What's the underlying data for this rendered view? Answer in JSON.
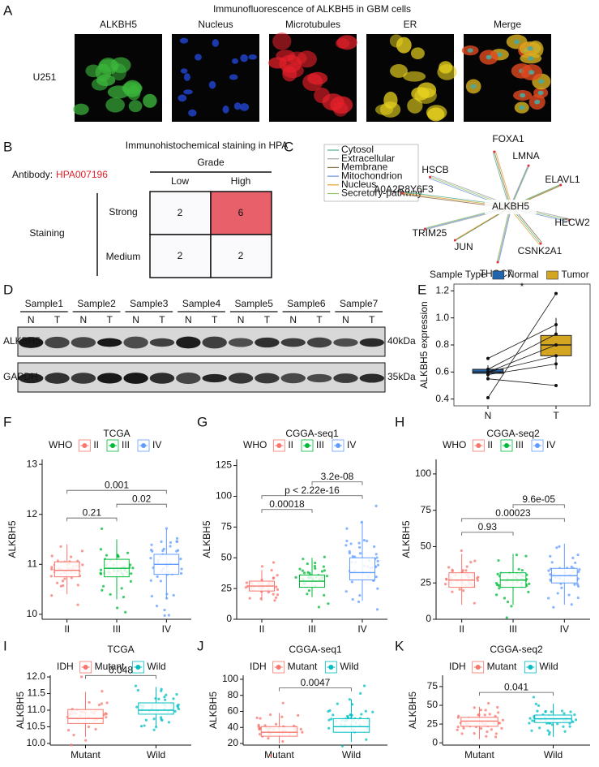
{
  "A": {
    "letter": "A",
    "title": "Immunofluorescence of ALKBH5 in GBM cells",
    "row_label": "U251",
    "channels": [
      {
        "name": "ALKBH5",
        "color": "#3cb83c"
      },
      {
        "name": "Nucleus",
        "color": "#1f3fbf"
      },
      {
        "name": "Microtubules",
        "color": "#e8202a"
      },
      {
        "name": "ER",
        "color": "#e8d21e"
      },
      {
        "name": "Merge",
        "color": "#000000"
      }
    ]
  },
  "B": {
    "letter": "B",
    "title": "Immunohistochemical staining in HPA",
    "antibody_label": "Antibody:",
    "antibody": "HPA007196",
    "column_header": "Grade",
    "columns": [
      "Low",
      "High"
    ],
    "row_header": "Staining",
    "rows": [
      "Strong",
      "Medium"
    ],
    "cells": [
      [
        2,
        6
      ],
      [
        2,
        2
      ]
    ]
  },
  "C": {
    "letter": "C",
    "center": "ALKBH5",
    "legend": [
      {
        "name": "Cytosol",
        "color": "#4daf8a"
      },
      {
        "name": "Extracellular",
        "color": "#a0a0a0"
      },
      {
        "name": "Membrane",
        "color": "#8c6d46"
      },
      {
        "name": "Mitochondrion",
        "color": "#6b8fd6"
      },
      {
        "name": "Nucleus",
        "color": "#e0a030"
      },
      {
        "name": "Secretory-pathway",
        "color": "#8fc46b"
      }
    ],
    "nodes": [
      "FOXA1",
      "LMNA",
      "ELAVL1",
      "HECW2",
      "CSNK2A1",
      "THOC7",
      "JUN",
      "TRIM25",
      "A0A2R8Y6F3",
      "HSCB"
    ]
  },
  "D": {
    "letter": "D",
    "samples": [
      "Sample1",
      "Sample2",
      "Sample3",
      "Sample4",
      "Sample5",
      "Sample6",
      "Sample7"
    ],
    "lanes": [
      "N",
      "T"
    ],
    "proteins": [
      "ALKBH5",
      "GAPDH"
    ],
    "sizes": [
      "40kDa",
      "35kDa"
    ]
  },
  "chart_data": [
    {
      "type": "paired-box",
      "panel": "E",
      "legend_title": "Sample Type",
      "ylabel": "ALKBH5 expression",
      "annotation": "*",
      "categories": [
        "N",
        "T"
      ],
      "ylim": [
        0.35,
        1.25
      ],
      "yticks": [
        0.4,
        0.6,
        0.8,
        {
          "value": 1,
          "label": "1.0"
        },
        1.2
      ],
      "series": [
        {
          "name": "Normal",
          "color": "#2166ac",
          "values": [
            0.55,
            0.59,
            0.6,
            0.62,
            0.65
          ]
        },
        {
          "name": "Tumor",
          "color": "#d4a520",
          "values": [
            0.62,
            0.72,
            0.8,
            0.87,
            1.0
          ]
        }
      ],
      "paired_values": [
        [
          0.41,
          1.18
        ],
        [
          0.7,
          0.95
        ],
        [
          0.62,
          0.88
        ],
        [
          0.6,
          0.8
        ],
        [
          0.6,
          0.72
        ],
        [
          0.58,
          0.66
        ],
        [
          0.55,
          0.5
        ]
      ]
    },
    {
      "type": "box",
      "panel": "F",
      "title": "TCGA",
      "legend_title": "WHO",
      "ylabel": "ALKBH5",
      "categories": [
        "II",
        "III",
        "IV"
      ],
      "ylim": [
        9.9,
        13.1
      ],
      "yticks": [
        10,
        11,
        12,
        13
      ],
      "series": [
        {
          "name": "II",
          "color": "#F8766D",
          "values": [
            10.4,
            10.75,
            10.88,
            11.05,
            11.4
          ]
        },
        {
          "name": "III",
          "color": "#00BA38",
          "values": [
            10.3,
            10.75,
            10.92,
            11.1,
            11.5
          ]
        },
        {
          "name": "IV",
          "color": "#619CFF",
          "values": [
            10.3,
            10.8,
            11.0,
            11.2,
            11.7
          ]
        }
      ],
      "comparisons": [
        {
          "groups": [
            "II",
            "III"
          ],
          "label": "0.21"
        },
        {
          "groups": [
            "III",
            "IV"
          ],
          "label": "0.02"
        },
        {
          "groups": [
            "II",
            "IV"
          ],
          "label": "0.001"
        }
      ]
    },
    {
      "type": "box",
      "panel": "G",
      "title": "CGGA-seq1",
      "legend_title": "WHO",
      "ylabel": "ALKBH5",
      "categories": [
        "II",
        "III",
        "IV"
      ],
      "ylim": [
        0,
        130
      ],
      "yticks": [
        0,
        25,
        50,
        75,
        100,
        125
      ],
      "series": [
        {
          "name": "II",
          "color": "#F8766D",
          "values": [
            15,
            23,
            27,
            31,
            40
          ]
        },
        {
          "name": "III",
          "color": "#00BA38",
          "values": [
            18,
            26,
            31,
            36,
            50
          ]
        },
        {
          "name": "IV",
          "color": "#619CFF",
          "values": [
            15,
            32,
            38,
            50,
            80
          ]
        }
      ],
      "comparisons": [
        {
          "groups": [
            "II",
            "III"
          ],
          "label": "0.00018"
        },
        {
          "groups": [
            "II",
            "IV"
          ],
          "label": "p < 2.22e-16"
        },
        {
          "groups": [
            "III",
            "IV"
          ],
          "label": "3.2e-08"
        }
      ]
    },
    {
      "type": "box",
      "panel": "H",
      "title": "CGGA-seq2",
      "legend_title": "WHO",
      "ylabel": "ALKBH5",
      "categories": [
        "II",
        "III",
        "IV"
      ],
      "ylim": [
        0,
        110
      ],
      "yticks": [
        0,
        25,
        50,
        75,
        100
      ],
      "series": [
        {
          "name": "II",
          "color": "#F8766D",
          "values": [
            10,
            22,
            27,
            32,
            45
          ]
        },
        {
          "name": "III",
          "color": "#00BA38",
          "values": [
            10,
            22,
            27,
            32,
            45
          ]
        },
        {
          "name": "IV",
          "color": "#619CFF",
          "values": [
            10,
            25,
            30,
            35,
            52
          ]
        }
      ],
      "comparisons": [
        {
          "groups": [
            "II",
            "III"
          ],
          "label": "0.93"
        },
        {
          "groups": [
            "II",
            "IV"
          ],
          "label": "0.00023"
        },
        {
          "groups": [
            "III",
            "IV"
          ],
          "label": "9.6e-05"
        }
      ]
    },
    {
      "type": "box",
      "panel": "I",
      "title": "TCGA",
      "legend_title": "IDH",
      "ylabel": "ALKBH5",
      "categories": [
        "Mutant",
        "Wild"
      ],
      "ylim": [
        9.95,
        12.05
      ],
      "yticks": [
        {
          "value": 10,
          "label": "10.0"
        },
        10.5,
        {
          "value": 11,
          "label": "11.0"
        },
        11.5,
        {
          "value": 12,
          "label": "12.0"
        }
      ],
      "series": [
        {
          "name": "Mutant",
          "color": "#F8766D",
          "values": [
            10.2,
            10.6,
            10.75,
            11.02,
            11.55
          ]
        },
        {
          "name": "Wild",
          "color": "#00BFC4",
          "values": [
            10.5,
            10.88,
            11.0,
            11.22,
            11.7
          ]
        }
      ],
      "comparisons": [
        {
          "groups": [
            "Mutant",
            "Wild"
          ],
          "label": "0.048"
        }
      ]
    },
    {
      "type": "box",
      "panel": "J",
      "title": "CGGA-seq1",
      "legend_title": "IDH",
      "ylabel": "ALKBH5",
      "categories": [
        "Mutant",
        "Wild"
      ],
      "ylim": [
        18,
        105
      ],
      "yticks": [
        20,
        40,
        60,
        80,
        100
      ],
      "series": [
        {
          "name": "Mutant",
          "color": "#F8766D",
          "values": [
            20,
            29,
            34,
            41,
            58
          ]
        },
        {
          "name": "Wild",
          "color": "#00BFC4",
          "values": [
            22,
            34,
            41,
            51,
            75
          ]
        }
      ],
      "comparisons": [
        {
          "groups": [
            "Mutant",
            "Wild"
          ],
          "label": "0.0047"
        }
      ]
    },
    {
      "type": "box",
      "panel": "K",
      "title": "CGGA-seq2",
      "legend_title": "IDH",
      "ylabel": "ALKBH5",
      "categories": [
        "Mutant",
        "Wild"
      ],
      "ylim": [
        -3,
        90
      ],
      "yticks": [
        0,
        25,
        50,
        75
      ],
      "series": [
        {
          "name": "Mutant",
          "color": "#F8766D",
          "values": [
            5,
            22,
            29,
            34,
            48
          ]
        },
        {
          "name": "Wild",
          "color": "#00BFC4",
          "values": [
            8,
            27,
            32,
            37,
            52
          ]
        }
      ],
      "comparisons": [
        {
          "groups": [
            "Mutant",
            "Wild"
          ],
          "label": "0.041"
        }
      ]
    }
  ]
}
